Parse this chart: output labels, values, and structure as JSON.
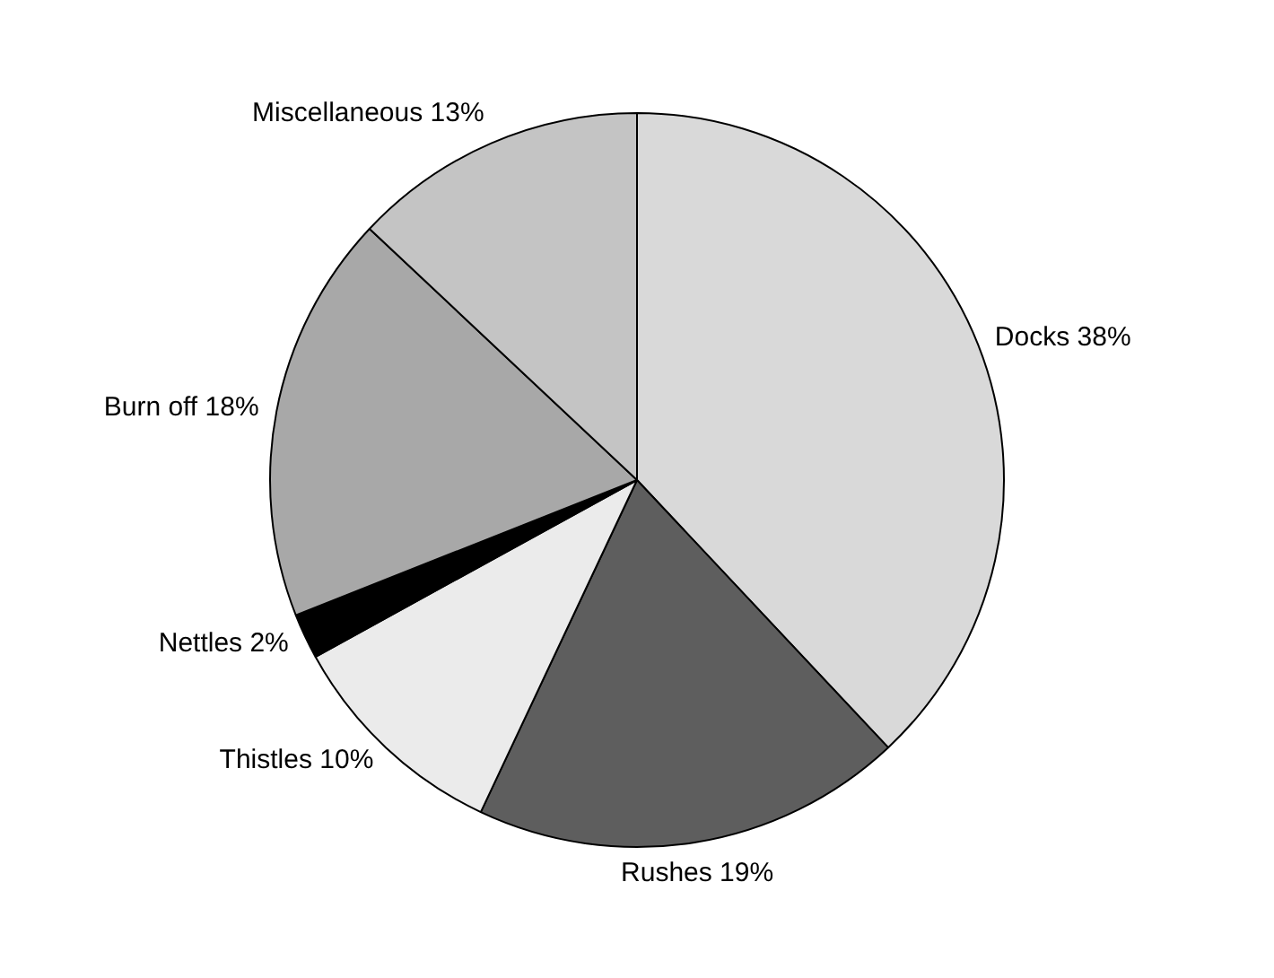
{
  "chart_data": {
    "type": "pie",
    "categories": [
      "Docks",
      "Rushes",
      "Thistles",
      "Nettles",
      "Burn off",
      "Miscellaneous"
    ],
    "values": [
      38,
      19,
      10,
      2,
      18,
      13
    ],
    "colors": [
      "#d9d9d9",
      "#5e5e5e",
      "#ebebeb",
      "#000000",
      "#a8a8a8",
      "#c4c4c4"
    ],
    "value_labels": [
      "38%",
      "19%",
      "10%",
      "2%",
      "18%",
      "13%"
    ],
    "legend": false
  }
}
